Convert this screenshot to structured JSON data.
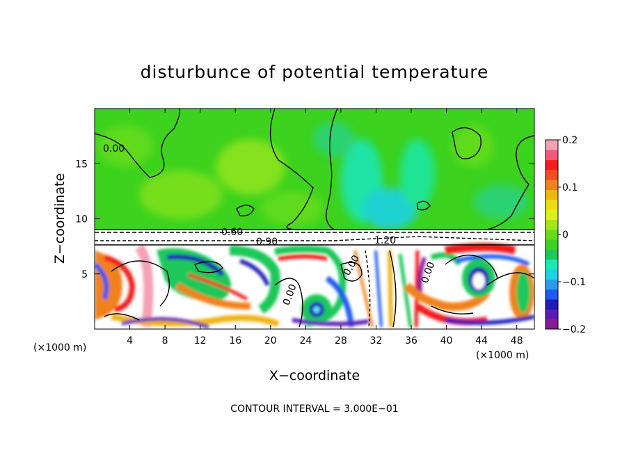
{
  "chart_data": {
    "type": "heatmap",
    "title": "disturbunce of potential temperature",
    "xlabel": "X−coordinate",
    "ylabel": "Z−coordinate",
    "x_unit_left": "(×1000 m)",
    "x_unit_right": "(×1000 m)",
    "xlim": [
      0,
      50
    ],
    "ylim": [
      0,
      20
    ],
    "x_ticks": [
      4,
      8,
      12,
      16,
      20,
      24,
      28,
      32,
      36,
      40,
      44,
      48
    ],
    "x_tick_labels": [
      "4",
      "8",
      "12",
      "16",
      "20",
      "24",
      "28",
      "32",
      "36",
      "40",
      "44",
      "48"
    ],
    "y_ticks": [
      5,
      10,
      15
    ],
    "y_tick_labels": [
      "5",
      "10",
      "15"
    ],
    "colorbar": {
      "range": [
        -0.2,
        0.2
      ],
      "ticks": [
        0.2,
        0.1,
        0,
        -0.1,
        -0.2
      ],
      "tick_labels": [
        "0.2",
        "0.1",
        "0",
        "−0.1",
        "−0.2"
      ],
      "colors": [
        "#8a1a9c",
        "#5a1ab8",
        "#1e1eb4",
        "#1e5af0",
        "#2a9cf0",
        "#1ed2e6",
        "#1ee6b4",
        "#1ec85a",
        "#3cd21e",
        "#64dc1e",
        "#a0e61e",
        "#dcf01e",
        "#f0dc14",
        "#f0b414",
        "#f0821e",
        "#f0501e",
        "#f01e1e",
        "#f05a78",
        "#f5a0b4"
      ]
    },
    "contour_labels": [
      "0.00",
      "0.60",
      "0.90",
      "1.20",
      "0.00",
      "0.00",
      "0.00"
    ],
    "grid": false
  },
  "contour_interval": "CONTOUR INTERVAL = 3.000E−01"
}
